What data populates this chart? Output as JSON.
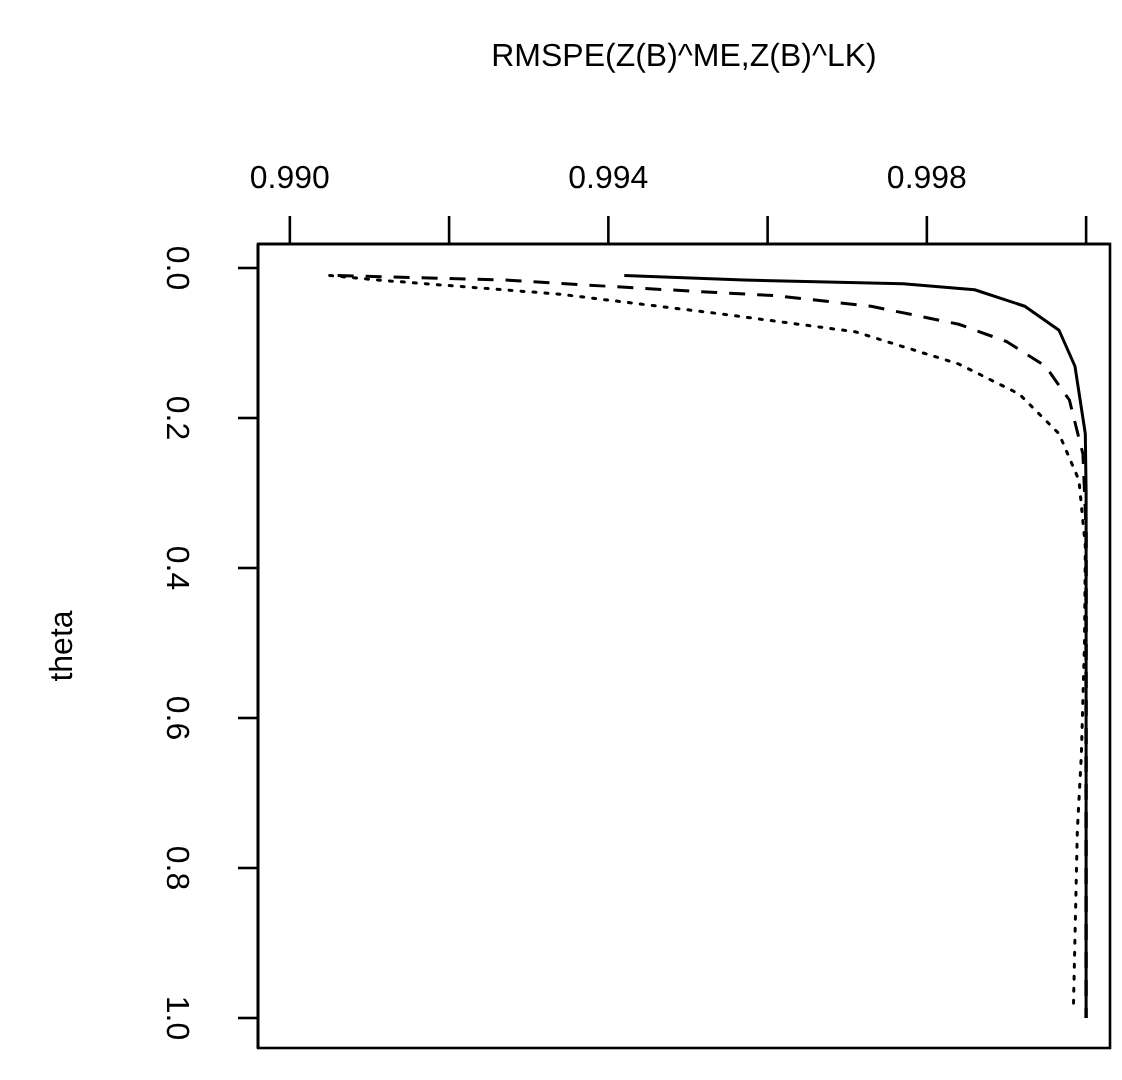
{
  "chart_data": {
    "type": "line",
    "xlabel": "RMSPE(Z(B)^ME,Z(B)^LK)",
    "ylabel": "theta",
    "xlim": [
      0.9896,
      1.0003
    ],
    "xticks": [
      {
        "value": 0.99,
        "label": "0.990"
      },
      {
        "value": 0.992,
        "label": null
      },
      0.994,
      {
        "value": 0.996,
        "label": null
      },
      0.998,
      {
        "value": 1.0,
        "label": null
      }
    ],
    "ylim": [
      1.04,
      -0.032
    ],
    "yticks": [
      {
        "value": 0,
        "label": "0.0"
      },
      0.2,
      0.4,
      0.6,
      0.8,
      {
        "value": 1,
        "label": "1.0"
      }
    ],
    "marker": "none",
    "grid": false,
    "series": [
      {
        "color": "#000000",
        "line_style": "solid",
        "x": [
          0.9942,
          0.9957,
          0.9977,
          0.9986,
          0.99923,
          0.99966,
          0.99986,
          0.99999,
          1.0,
          1.0
        ],
        "values": [
          0.01,
          0.016,
          0.021,
          0.029,
          0.051,
          0.083,
          0.131,
          0.221,
          0.3,
          1.0
        ]
      },
      {
        "color": "#000000",
        "line_style": "dashed",
        "x": [
          0.9906,
          0.9927,
          0.9944,
          0.9961,
          0.9973,
          0.9984,
          0.999,
          0.99949,
          0.99979,
          0.99996,
          1.0,
          1.0
        ],
        "values": [
          0.01,
          0.016,
          0.027,
          0.037,
          0.051,
          0.075,
          0.098,
          0.131,
          0.176,
          0.248,
          0.35,
          1.0
        ]
      },
      {
        "color": "#000000",
        "line_style": "dotted",
        "x": [
          0.9905,
          0.9911,
          0.9934,
          0.9954,
          0.9971,
          0.9984,
          0.99916,
          0.99966,
          0.99991,
          0.99999,
          0.99998,
          0.99994,
          0.99989,
          0.99984
        ],
        "values": [
          0.01,
          0.016,
          0.035,
          0.061,
          0.085,
          0.128,
          0.168,
          0.221,
          0.283,
          0.371,
          0.5,
          0.65,
          0.75,
          0.99
        ]
      }
    ]
  }
}
